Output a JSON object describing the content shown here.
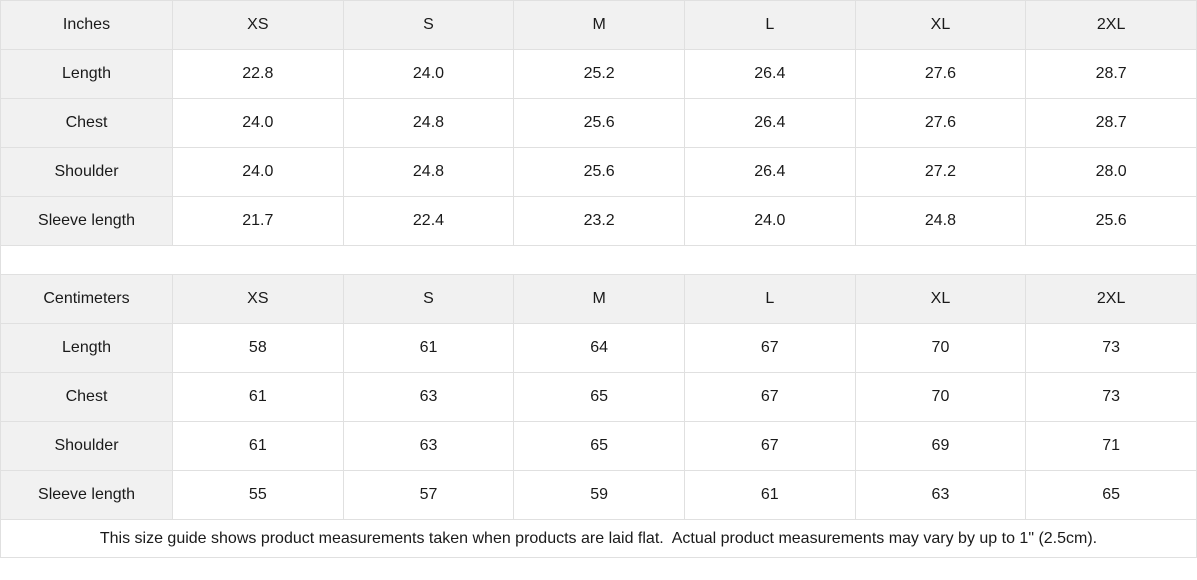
{
  "chart_data": [
    {
      "type": "table",
      "title": "Inches",
      "columns": [
        "XS",
        "S",
        "M",
        "L",
        "XL",
        "2XL"
      ],
      "rows": [
        {
          "label": "Length",
          "values": [
            "22.8",
            "24.0",
            "25.2",
            "26.4",
            "27.6",
            "28.7"
          ]
        },
        {
          "label": "Chest",
          "values": [
            "24.0",
            "24.8",
            "25.6",
            "26.4",
            "27.6",
            "28.7"
          ]
        },
        {
          "label": "Shoulder",
          "values": [
            "24.0",
            "24.8",
            "25.6",
            "26.4",
            "27.2",
            "28.0"
          ]
        },
        {
          "label": "Sleeve length",
          "values": [
            "21.7",
            "22.4",
            "23.2",
            "24.0",
            "24.8",
            "25.6"
          ]
        }
      ]
    },
    {
      "type": "table",
      "title": "Centimeters",
      "columns": [
        "XS",
        "S",
        "M",
        "L",
        "XL",
        "2XL"
      ],
      "rows": [
        {
          "label": "Length",
          "values": [
            "58",
            "61",
            "64",
            "67",
            "70",
            "73"
          ]
        },
        {
          "label": "Chest",
          "values": [
            "61",
            "63",
            "65",
            "67",
            "70",
            "73"
          ]
        },
        {
          "label": "Shoulder",
          "values": [
            "61",
            "63",
            "65",
            "67",
            "69",
            "71"
          ]
        },
        {
          "label": "Sleeve length",
          "values": [
            "55",
            "57",
            "59",
            "61",
            "63",
            "65"
          ]
        }
      ]
    }
  ],
  "footer": {
    "note": "This size guide shows product measurements taken when products are laid flat.  Actual product measurements may vary by up to 1\" (2.5cm)."
  },
  "colors": {
    "header_bg": "#f1f1f1",
    "border": "#e0e0e0",
    "text": "#1a1a1a"
  }
}
